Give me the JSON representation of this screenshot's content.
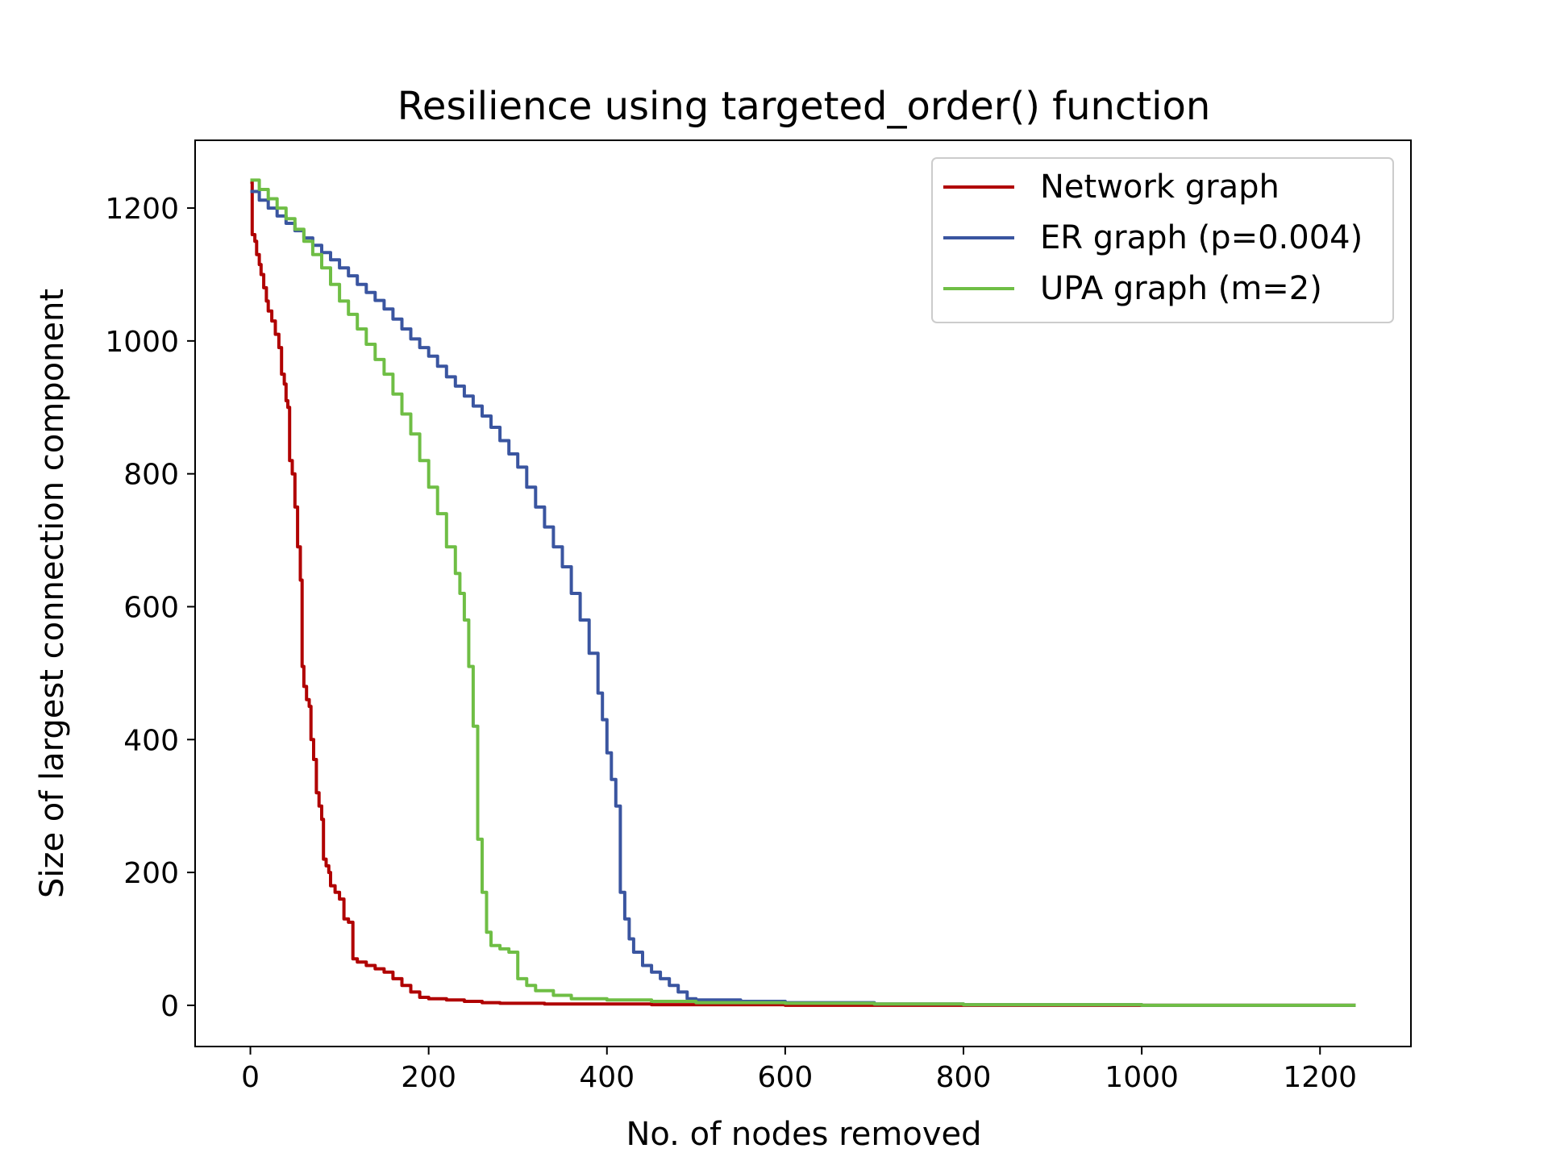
{
  "chart_data": {
    "type": "line",
    "title": "Resilience using targeted_order() function",
    "xlabel": "No. of nodes removed",
    "ylabel": "Size of largest connection component",
    "xlim": [
      -62,
      1302
    ],
    "ylim": [
      -62,
      1302
    ],
    "xticks": [
      0,
      200,
      400,
      600,
      800,
      1000,
      1200
    ],
    "yticks": [
      0,
      200,
      400,
      600,
      800,
      1000,
      1200
    ],
    "legend_position": "top-right",
    "series": [
      {
        "name": "Network graph",
        "color": "#b00000",
        "points": [
          [
            0,
            1239
          ],
          [
            2,
            1160
          ],
          [
            5,
            1150
          ],
          [
            7,
            1130
          ],
          [
            10,
            1115
          ],
          [
            12,
            1100
          ],
          [
            15,
            1080
          ],
          [
            18,
            1060
          ],
          [
            20,
            1045
          ],
          [
            24,
            1030
          ],
          [
            28,
            1010
          ],
          [
            32,
            990
          ],
          [
            35,
            950
          ],
          [
            38,
            935
          ],
          [
            40,
            910
          ],
          [
            42,
            900
          ],
          [
            44,
            820
          ],
          [
            47,
            800
          ],
          [
            50,
            750
          ],
          [
            53,
            690
          ],
          [
            56,
            640
          ],
          [
            58,
            510
          ],
          [
            60,
            480
          ],
          [
            63,
            460
          ],
          [
            66,
            450
          ],
          [
            68,
            400
          ],
          [
            71,
            370
          ],
          [
            74,
            320
          ],
          [
            77,
            300
          ],
          [
            80,
            280
          ],
          [
            82,
            220
          ],
          [
            85,
            210
          ],
          [
            88,
            200
          ],
          [
            90,
            180
          ],
          [
            95,
            170
          ],
          [
            100,
            160
          ],
          [
            105,
            130
          ],
          [
            110,
            125
          ],
          [
            115,
            70
          ],
          [
            120,
            65
          ],
          [
            130,
            60
          ],
          [
            140,
            55
          ],
          [
            150,
            50
          ],
          [
            160,
            40
          ],
          [
            170,
            30
          ],
          [
            180,
            20
          ],
          [
            190,
            12
          ],
          [
            200,
            10
          ],
          [
            220,
            8
          ],
          [
            240,
            6
          ],
          [
            260,
            4
          ],
          [
            280,
            3
          ],
          [
            330,
            2
          ],
          [
            450,
            1
          ],
          [
            600,
            0
          ],
          [
            800,
            0
          ],
          [
            1000,
            0
          ],
          [
            1240,
            0
          ]
        ]
      },
      {
        "name": "ER graph (p=0.004)",
        "color": "#3a55a0",
        "points": [
          [
            0,
            1225
          ],
          [
            10,
            1212
          ],
          [
            20,
            1200
          ],
          [
            30,
            1188
          ],
          [
            40,
            1177
          ],
          [
            50,
            1166
          ],
          [
            60,
            1155
          ],
          [
            70,
            1144
          ],
          [
            80,
            1133
          ],
          [
            90,
            1122
          ],
          [
            100,
            1110
          ],
          [
            110,
            1098
          ],
          [
            120,
            1085
          ],
          [
            130,
            1073
          ],
          [
            140,
            1061
          ],
          [
            150,
            1048
          ],
          [
            160,
            1033
          ],
          [
            170,
            1018
          ],
          [
            180,
            1003
          ],
          [
            190,
            990
          ],
          [
            200,
            977
          ],
          [
            210,
            962
          ],
          [
            220,
            946
          ],
          [
            230,
            932
          ],
          [
            240,
            917
          ],
          [
            250,
            902
          ],
          [
            260,
            887
          ],
          [
            270,
            870
          ],
          [
            280,
            850
          ],
          [
            290,
            830
          ],
          [
            300,
            810
          ],
          [
            310,
            780
          ],
          [
            320,
            750
          ],
          [
            330,
            720
          ],
          [
            340,
            690
          ],
          [
            350,
            660
          ],
          [
            360,
            620
          ],
          [
            370,
            580
          ],
          [
            380,
            530
          ],
          [
            390,
            470
          ],
          [
            395,
            430
          ],
          [
            400,
            380
          ],
          [
            405,
            340
          ],
          [
            410,
            300
          ],
          [
            415,
            170
          ],
          [
            420,
            130
          ],
          [
            425,
            100
          ],
          [
            430,
            80
          ],
          [
            440,
            60
          ],
          [
            450,
            50
          ],
          [
            460,
            40
          ],
          [
            470,
            30
          ],
          [
            480,
            20
          ],
          [
            490,
            10
          ],
          [
            500,
            8
          ],
          [
            550,
            6
          ],
          [
            600,
            4
          ],
          [
            700,
            2
          ],
          [
            800,
            1
          ],
          [
            1000,
            0
          ],
          [
            1240,
            0
          ]
        ]
      },
      {
        "name": "UPA graph (m=2)",
        "color": "#6fbe45",
        "points": [
          [
            0,
            1242
          ],
          [
            10,
            1228
          ],
          [
            20,
            1214
          ],
          [
            30,
            1200
          ],
          [
            40,
            1184
          ],
          [
            50,
            1168
          ],
          [
            60,
            1150
          ],
          [
            70,
            1130
          ],
          [
            80,
            1110
          ],
          [
            90,
            1085
          ],
          [
            100,
            1060
          ],
          [
            110,
            1040
          ],
          [
            120,
            1018
          ],
          [
            130,
            995
          ],
          [
            140,
            972
          ],
          [
            150,
            950
          ],
          [
            160,
            920
          ],
          [
            170,
            890
          ],
          [
            180,
            860
          ],
          [
            190,
            820
          ],
          [
            200,
            780
          ],
          [
            210,
            740
          ],
          [
            220,
            690
          ],
          [
            230,
            650
          ],
          [
            235,
            620
          ],
          [
            240,
            580
          ],
          [
            245,
            510
          ],
          [
            250,
            420
          ],
          [
            255,
            250
          ],
          [
            260,
            170
          ],
          [
            265,
            110
          ],
          [
            270,
            90
          ],
          [
            280,
            85
          ],
          [
            290,
            80
          ],
          [
            300,
            40
          ],
          [
            310,
            30
          ],
          [
            320,
            22
          ],
          [
            340,
            15
          ],
          [
            360,
            10
          ],
          [
            400,
            8
          ],
          [
            450,
            6
          ],
          [
            500,
            4
          ],
          [
            600,
            3
          ],
          [
            700,
            2
          ],
          [
            800,
            1
          ],
          [
            1000,
            0
          ],
          [
            1240,
            0
          ]
        ]
      }
    ]
  }
}
